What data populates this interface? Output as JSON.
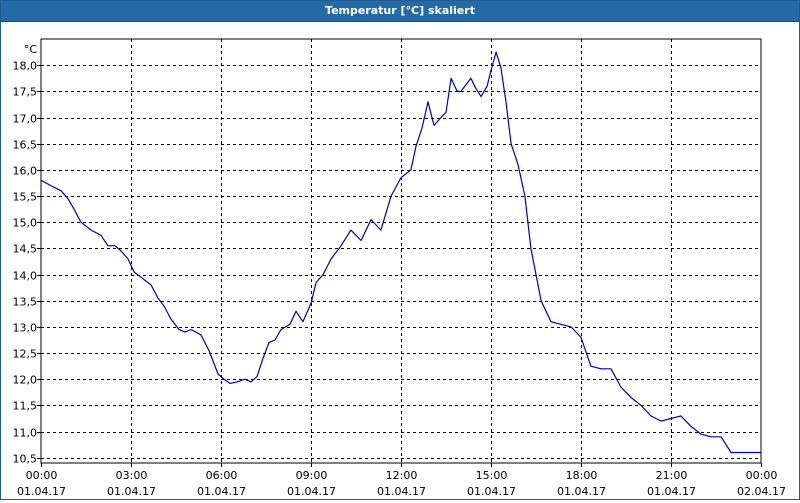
{
  "window": {
    "title": "Temperatur [°C] skaliert"
  },
  "chart_data": {
    "type": "line",
    "title": "Temperatur [°C] skaliert",
    "y_unit_label": "°C",
    "ylim": [
      10.4,
      18.5
    ],
    "y_ticks": [
      "10,5",
      "11,0",
      "11,5",
      "12,0",
      "12,5",
      "13,0",
      "13,5",
      "14,0",
      "14,5",
      "15,0",
      "15,5",
      "16,0",
      "16,5",
      "17,0",
      "17,5",
      "18,0"
    ],
    "y_tick_values": [
      10.5,
      11.0,
      11.5,
      12.0,
      12.5,
      13.0,
      13.5,
      14.0,
      14.5,
      15.0,
      15.5,
      16.0,
      16.5,
      17.0,
      17.5,
      18.0
    ],
    "x_range_hours": [
      0,
      24
    ],
    "x_ticks": [
      {
        "time": "00:00",
        "date": "01.04.17",
        "hour": 0
      },
      {
        "time": "03:00",
        "date": "01.04.17",
        "hour": 3
      },
      {
        "time": "06:00",
        "date": "01.04.17",
        "hour": 6
      },
      {
        "time": "09:00",
        "date": "01.04.17",
        "hour": 9
      },
      {
        "time": "12:00",
        "date": "01.04.17",
        "hour": 12
      },
      {
        "time": "15:00",
        "date": "01.04.17",
        "hour": 15
      },
      {
        "time": "18:00",
        "date": "01.04.17",
        "hour": 18
      },
      {
        "time": "21:00",
        "date": "01.04.17",
        "hour": 21
      },
      {
        "time": "00:00",
        "date": "02.04.17",
        "hour": 24
      }
    ],
    "grid": true,
    "grid_style": "dashed",
    "series": [
      {
        "color": "#0000c0",
        "x_hours": [
          0,
          0.33,
          0.67,
          0.9,
          1.1,
          1.33,
          1.67,
          2.0,
          2.23,
          2.47,
          2.67,
          2.9,
          3.1,
          3.33,
          3.67,
          3.9,
          4.1,
          4.33,
          4.6,
          4.8,
          5.0,
          5.33,
          5.6,
          5.9,
          6.1,
          6.3,
          6.53,
          6.8,
          7.0,
          7.2,
          7.4,
          7.6,
          7.8,
          8.0,
          8.3,
          8.5,
          8.73,
          9.0,
          9.17,
          9.4,
          9.67,
          10.0,
          10.33,
          10.67,
          11.0,
          11.33,
          11.67,
          12.0,
          12.33,
          12.5,
          12.7,
          12.9,
          13.1,
          13.33,
          13.5,
          13.67,
          13.87,
          14.0,
          14.33,
          14.5,
          14.67,
          14.87,
          15.0,
          15.17,
          15.33,
          15.5,
          15.67,
          15.9,
          16.13,
          16.33,
          16.67,
          17.0,
          17.33,
          17.67,
          18.0,
          18.33,
          18.67,
          19.0,
          19.33,
          19.67,
          20.0,
          20.33,
          20.67,
          21.0,
          21.33,
          21.67,
          22.0,
          22.33,
          22.67,
          23.0,
          23.33,
          23.67,
          24.0
        ],
        "values": [
          15.8,
          15.7,
          15.6,
          15.45,
          15.25,
          15.0,
          14.85,
          14.75,
          14.55,
          14.55,
          14.45,
          14.3,
          14.05,
          13.95,
          13.8,
          13.55,
          13.4,
          13.15,
          12.95,
          12.9,
          12.95,
          12.85,
          12.55,
          12.1,
          12.0,
          11.92,
          11.95,
          12.0,
          11.95,
          12.05,
          12.4,
          12.7,
          12.75,
          12.95,
          13.05,
          13.3,
          13.1,
          13.45,
          13.85,
          14.0,
          14.3,
          14.55,
          14.85,
          14.65,
          15.05,
          14.85,
          15.5,
          15.85,
          16.0,
          16.45,
          16.8,
          17.3,
          16.85,
          17.0,
          17.1,
          17.75,
          17.5,
          17.5,
          17.75,
          17.55,
          17.4,
          17.6,
          17.9,
          18.25,
          17.95,
          17.3,
          16.5,
          16.1,
          15.5,
          14.5,
          13.5,
          13.1,
          13.05,
          13.0,
          12.8,
          12.25,
          12.2,
          12.2,
          11.85,
          11.65,
          11.5,
          11.3,
          11.2,
          11.25,
          11.3,
          11.1,
          10.95,
          10.9,
          10.9,
          10.6,
          10.6,
          10.6,
          10.6
        ]
      }
    ]
  }
}
